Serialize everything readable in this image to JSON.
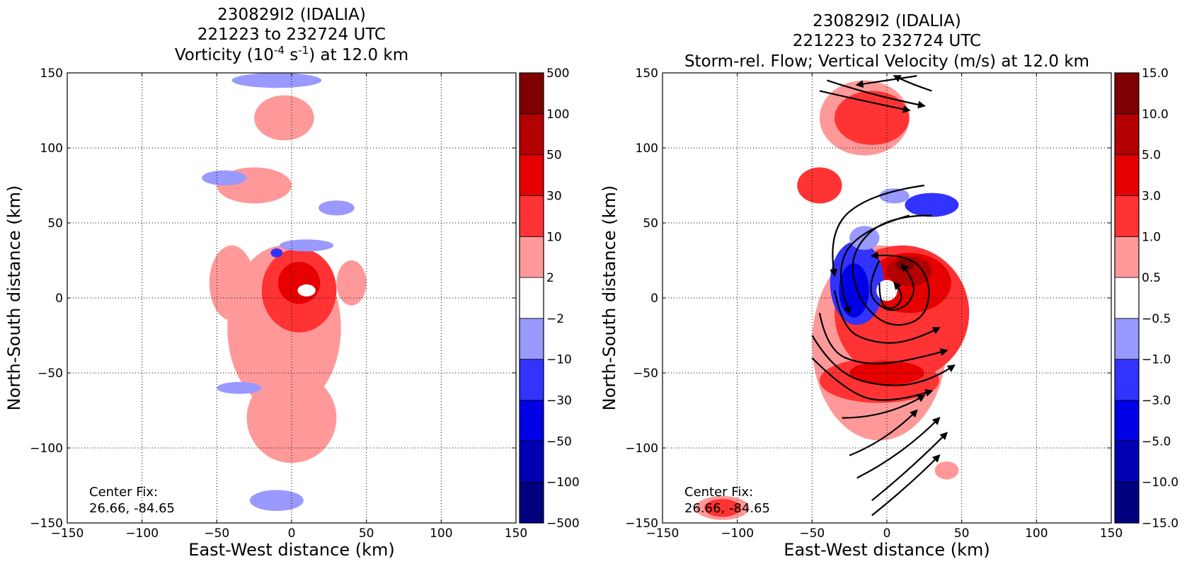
{
  "chart_data": [
    {
      "type": "heatmap",
      "title_lines": [
        "230829I2 (IDALIA)",
        "221223 to 232724 UTC"
      ],
      "title_quantity": {
        "pre": "Vorticity (10",
        "sup1": "-4",
        "mid": " s",
        "sup2": "-1",
        "post": ") at 12.0 km"
      },
      "xlabel": "East-West distance (km)",
      "ylabel": "North-South distance (km)",
      "xlim": [
        -150,
        150
      ],
      "ylim": [
        -150,
        150
      ],
      "xticks": [
        -150,
        -100,
        -50,
        0,
        50,
        100,
        150
      ],
      "yticks": [
        -150,
        -100,
        -50,
        0,
        50,
        100,
        150
      ],
      "xtick_labels": [
        "−150",
        "−100",
        "−50",
        "0",
        "50",
        "100",
        "150"
      ],
      "ytick_labels": [
        "−150",
        "−100",
        "−50",
        "0",
        "50",
        "100",
        "150"
      ],
      "grid": true,
      "colorbar": {
        "levels": [
          "−500",
          "−100",
          "−50",
          "−30",
          "−10",
          "−2",
          "2",
          "10",
          "30",
          "50",
          "100",
          "500"
        ],
        "colors": [
          "#00007f",
          "#0000b3",
          "#0000e6",
          "#3333ff",
          "#9999ff",
          "#ffffff",
          "#ff9999",
          "#ff3333",
          "#e60000",
          "#b30000",
          "#7f0000"
        ]
      },
      "annotation": [
        "Center Fix:",
        "26.66, -84.65"
      ],
      "fields": [
        {
          "level": 6,
          "shape": "ellipse",
          "cx": -5,
          "cy": -20,
          "rx": 38,
          "ry": 55
        },
        {
          "level": 6,
          "shape": "ellipse",
          "cx": 0,
          "cy": -80,
          "rx": 30,
          "ry": 30
        },
        {
          "level": 6,
          "shape": "ellipse",
          "cx": -25,
          "cy": 75,
          "rx": 25,
          "ry": 12
        },
        {
          "level": 6,
          "shape": "ellipse",
          "cx": -5,
          "cy": 120,
          "rx": 20,
          "ry": 15
        },
        {
          "level": 6,
          "shape": "ellipse",
          "cx": -40,
          "cy": 10,
          "rx": 15,
          "ry": 25
        },
        {
          "level": 6,
          "shape": "ellipse",
          "cx": 40,
          "cy": 10,
          "rx": 10,
          "ry": 15
        },
        {
          "level": 7,
          "shape": "ellipse",
          "cx": 5,
          "cy": 5,
          "rx": 25,
          "ry": 28
        },
        {
          "level": 8,
          "shape": "ellipse",
          "cx": 5,
          "cy": 10,
          "rx": 14,
          "ry": 14
        },
        {
          "level": 4,
          "shape": "ellipse",
          "cx": 10,
          "cy": 35,
          "rx": 18,
          "ry": 4
        },
        {
          "level": 4,
          "shape": "ellipse",
          "cx": -35,
          "cy": -60,
          "rx": 15,
          "ry": 4
        },
        {
          "level": 4,
          "shape": "ellipse",
          "cx": -10,
          "cy": -135,
          "rx": 18,
          "ry": 7
        },
        {
          "level": 4,
          "shape": "ellipse",
          "cx": -10,
          "cy": 145,
          "rx": 30,
          "ry": 5
        },
        {
          "level": 4,
          "shape": "ellipse",
          "cx": -45,
          "cy": 80,
          "rx": 15,
          "ry": 5
        },
        {
          "level": 4,
          "shape": "ellipse",
          "cx": 30,
          "cy": 60,
          "rx": 12,
          "ry": 5
        },
        {
          "level": 5,
          "shape": "ellipse",
          "cx": 10,
          "cy": 5,
          "rx": 6,
          "ry": 4
        },
        {
          "level": 3,
          "shape": "ellipse",
          "cx": -10,
          "cy": 30,
          "rx": 4,
          "ry": 3
        }
      ],
      "streamlines": []
    },
    {
      "type": "heatmap",
      "title_lines": [
        "230829I2 (IDALIA)",
        "221223 to 232724 UTC"
      ],
      "title_quantity": {
        "pre": "Storm-rel. Flow; Vertical Velocity (m/s) at 12.0 km",
        "sup1": "",
        "mid": "",
        "sup2": "",
        "post": ""
      },
      "xlabel": "East-West distance (km)",
      "ylabel": "North-South distance (km)",
      "xlim": [
        -150,
        150
      ],
      "ylim": [
        -150,
        150
      ],
      "xticks": [
        -150,
        -100,
        -50,
        0,
        50,
        100,
        150
      ],
      "yticks": [
        -150,
        -100,
        -50,
        0,
        50,
        100,
        150
      ],
      "xtick_labels": [
        "−150",
        "−100",
        "−50",
        "0",
        "50",
        "100",
        "150"
      ],
      "ytick_labels": [
        "−150",
        "−100",
        "−50",
        "0",
        "50",
        "100",
        "150"
      ],
      "grid": true,
      "colorbar": {
        "levels": [
          "−15.0",
          "−10.0",
          "−5.0",
          "−3.0",
          "−1.0",
          "−0.5",
          "0.5",
          "1.0",
          "3.0",
          "5.0",
          "10.0",
          "15.0"
        ],
        "colors": [
          "#00007f",
          "#0000b3",
          "#0000e6",
          "#3333ff",
          "#9999ff",
          "#ffffff",
          "#ff9999",
          "#ff3333",
          "#e60000",
          "#b30000",
          "#7f0000"
        ]
      },
      "annotation": [
        "Center Fix:",
        "26.66, -84.65"
      ],
      "fields": [
        {
          "level": 6,
          "shape": "ellipse",
          "cx": -5,
          "cy": -30,
          "rx": 45,
          "ry": 65
        },
        {
          "level": 6,
          "shape": "ellipse",
          "cx": -15,
          "cy": 120,
          "rx": 30,
          "ry": 25
        },
        {
          "level": 6,
          "shape": "ellipse",
          "cx": -110,
          "cy": -140,
          "rx": 18,
          "ry": 8
        },
        {
          "level": 6,
          "shape": "ellipse",
          "cx": 40,
          "cy": -115,
          "rx": 8,
          "ry": 6
        },
        {
          "level": 7,
          "shape": "ellipse",
          "cx": 10,
          "cy": -10,
          "rx": 45,
          "ry": 45
        },
        {
          "level": 7,
          "shape": "ellipse",
          "cx": -10,
          "cy": 120,
          "rx": 25,
          "ry": 18
        },
        {
          "level": 7,
          "shape": "ellipse",
          "cx": -45,
          "cy": 75,
          "rx": 15,
          "ry": 12
        },
        {
          "level": 7,
          "shape": "ellipse",
          "cx": -5,
          "cy": -55,
          "rx": 40,
          "ry": 15
        },
        {
          "level": 7,
          "shape": "ellipse",
          "cx": -110,
          "cy": -140,
          "rx": 12,
          "ry": 6
        },
        {
          "level": 8,
          "shape": "ellipse",
          "cx": 15,
          "cy": 10,
          "rx": 28,
          "ry": 20
        },
        {
          "level": 8,
          "shape": "ellipse",
          "cx": 0,
          "cy": -50,
          "rx": 25,
          "ry": 8
        },
        {
          "level": 9,
          "shape": "ellipse",
          "cx": 15,
          "cy": 18,
          "rx": 15,
          "ry": 10
        },
        {
          "level": 10,
          "shape": "ellipse",
          "cx": 12,
          "cy": 22,
          "rx": 6,
          "ry": 4
        },
        {
          "level": 3,
          "shape": "ellipse",
          "cx": -20,
          "cy": 10,
          "rx": 18,
          "ry": 28
        },
        {
          "level": 2,
          "shape": "ellipse",
          "cx": -22,
          "cy": 5,
          "rx": 10,
          "ry": 18
        },
        {
          "level": 3,
          "shape": "ellipse",
          "cx": 30,
          "cy": 62,
          "rx": 18,
          "ry": 8
        },
        {
          "level": 4,
          "shape": "ellipse",
          "cx": 5,
          "cy": 68,
          "rx": 10,
          "ry": 5
        },
        {
          "level": 4,
          "shape": "ellipse",
          "cx": -15,
          "cy": 40,
          "rx": 10,
          "ry": 8
        },
        {
          "level": 5,
          "shape": "ellipse",
          "cx": 0,
          "cy": 5,
          "rx": 7,
          "ry": 7
        }
      ],
      "streamlines": [
        {
          "points": [
            [
              -40,
              145
            ],
            [
              -10,
              135
            ],
            [
              25,
              128
            ]
          ],
          "arrow": "end"
        },
        {
          "points": [
            [
              -45,
              138
            ],
            [
              -10,
              130
            ],
            [
              15,
              125
            ]
          ],
          "arrow": "end"
        },
        {
          "points": [
            [
              20,
              148
            ],
            [
              0,
              145
            ],
            [
              -20,
              142
            ]
          ],
          "arrow": "end"
        },
        {
          "points": [
            [
              30,
              138
            ],
            [
              15,
              143
            ],
            [
              5,
              148
            ]
          ],
          "arrow": "end"
        },
        {
          "points": [
            [
              25,
              75
            ],
            [
              -10,
              70
            ],
            [
              -40,
              45
            ],
            [
              -35,
              15
            ]
          ],
          "arrow": "end"
        },
        {
          "points": [
            [
              15,
              55
            ],
            [
              -20,
              45
            ],
            [
              -35,
              15
            ],
            [
              -25,
              -10
            ]
          ],
          "arrow": "end"
        },
        {
          "points": [
            [
              30,
              55
            ],
            [
              0,
              55
            ],
            [
              -25,
              30
            ],
            [
              -20,
              0
            ],
            [
              0,
              -20
            ],
            [
              25,
              -15
            ],
            [
              30,
              10
            ],
            [
              15,
              30
            ],
            [
              -10,
              28
            ]
          ],
          "arrow": "end"
        },
        {
          "points": [
            [
              -5,
              25
            ],
            [
              -15,
              5
            ],
            [
              0,
              -10
            ],
            [
              15,
              -5
            ],
            [
              20,
              10
            ],
            [
              10,
              22
            ]
          ],
          "arrow": "end"
        },
        {
          "points": [
            [
              -5,
              10
            ],
            [
              -5,
              -5
            ],
            [
              5,
              -8
            ],
            [
              12,
              2
            ],
            [
              5,
              10
            ]
          ],
          "arrow": "end"
        },
        {
          "points": [
            [
              -35,
              5
            ],
            [
              -30,
              -20
            ],
            [
              -10,
              -30
            ],
            [
              15,
              -30
            ],
            [
              35,
              -20
            ]
          ],
          "arrow": "end"
        },
        {
          "points": [
            [
              -45,
              -10
            ],
            [
              -40,
              -35
            ],
            [
              -15,
              -45
            ],
            [
              15,
              -42
            ],
            [
              40,
              -35
            ]
          ],
          "arrow": "end"
        },
        {
          "points": [
            [
              -50,
              -25
            ],
            [
              -35,
              -50
            ],
            [
              0,
              -60
            ],
            [
              30,
              -55
            ],
            [
              45,
              -45
            ]
          ],
          "arrow": "end"
        },
        {
          "points": [
            [
              -50,
              -40
            ],
            [
              -25,
              -65
            ],
            [
              5,
              -70
            ],
            [
              30,
              -62
            ]
          ],
          "arrow": "end"
        },
        {
          "points": [
            [
              -30,
              -80
            ],
            [
              0,
              -80
            ],
            [
              25,
              -65
            ]
          ],
          "arrow": "end"
        },
        {
          "points": [
            [
              -25,
              -105
            ],
            [
              0,
              -95
            ],
            [
              20,
              -75
            ]
          ],
          "arrow": "end"
        },
        {
          "points": [
            [
              -20,
              -120
            ],
            [
              10,
              -105
            ],
            [
              35,
              -80
            ]
          ],
          "arrow": "end"
        },
        {
          "points": [
            [
              -10,
              -135
            ],
            [
              15,
              -115
            ],
            [
              40,
              -90
            ]
          ],
          "arrow": "end"
        },
        {
          "points": [
            [
              -10,
              -145
            ],
            [
              15,
              -125
            ],
            [
              35,
              -105
            ]
          ],
          "arrow": "end"
        }
      ]
    }
  ]
}
